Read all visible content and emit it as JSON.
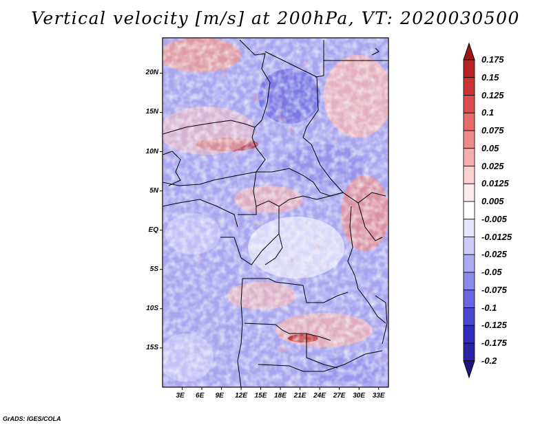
{
  "title": "Vertical velocity [m/s] at 200hPa, VT: 2020030500",
  "credit": "GrADS: IGES/COLA",
  "map": {
    "lat_labels": [
      "20N",
      "15N",
      "10N",
      "5N",
      "EQ",
      "5S",
      "10S",
      "15S"
    ],
    "lon_labels": [
      "3E",
      "6E",
      "9E",
      "12E",
      "15E",
      "18E",
      "21E",
      "24E",
      "27E",
      "30E",
      "33E"
    ],
    "lat_values": [
      20,
      15,
      10,
      5,
      0,
      -5,
      -10,
      -15
    ],
    "lon_values": [
      3,
      6,
      9,
      12,
      15,
      18,
      21,
      24,
      27,
      30,
      33
    ],
    "lat_range": [
      -20,
      24.5
    ],
    "lon_range": [
      0,
      34.5
    ]
  },
  "colorbar": {
    "labels": [
      "0.175",
      "0.15",
      "0.125",
      "0.1",
      "0.075",
      "0.05",
      "0.025",
      "0.0125",
      "0.005",
      "-0.005",
      "-0.0125",
      "-0.025",
      "-0.05",
      "-0.075",
      "-0.1",
      "-0.125",
      "-0.175",
      "-0.2"
    ],
    "colors": [
      "#a01515",
      "#b92323",
      "#cc3434",
      "#dc4c4c",
      "#e66a6a",
      "#ef8a8a",
      "#f6aeae",
      "#fad0d0",
      "#fdeaea",
      "#ffffff",
      "#e4e4fb",
      "#cccaf6",
      "#acaaf0",
      "#8c8aea",
      "#6a67e0",
      "#4b47d3",
      "#322dc0",
      "#2a23a5",
      "#1e1580"
    ]
  }
}
